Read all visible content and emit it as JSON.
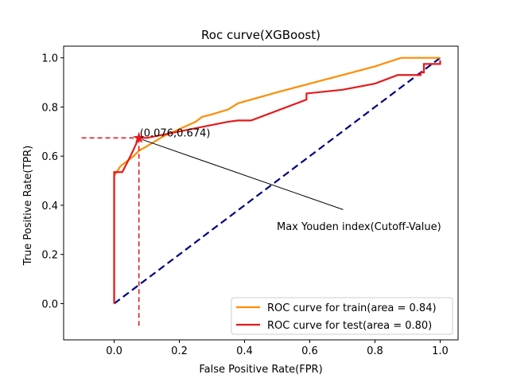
{
  "chart_data": {
    "type": "line",
    "title": "Roc curve(XGBoost)",
    "xlabel": "False Positive Rate(FPR)",
    "ylabel": "True Positive Rate(TPR)",
    "xlim": [
      -0.155,
      1.055
    ],
    "ylim": [
      -0.1475,
      1.0475
    ],
    "x_ticks": [
      "0.0",
      "0.2",
      "0.4",
      "0.6",
      "0.8",
      "1.0"
    ],
    "x_tick_values": [
      0,
      0.2,
      0.4,
      0.6,
      0.8,
      1.0
    ],
    "y_ticks": [
      "0.0",
      "0.2",
      "0.4",
      "0.6",
      "0.8",
      "1.0"
    ],
    "y_tick_values": [
      0,
      0.2,
      0.4,
      0.6,
      0.8,
      1.0
    ],
    "grid": false,
    "legend_position": "lower-right",
    "series": [
      {
        "name": "ROC curve for train(area = 0.84)",
        "color": "#ff8c00",
        "points": [
          [
            0,
            0
          ],
          [
            0,
            0.52
          ],
          [
            0.01,
            0.54
          ],
          [
            0.02,
            0.56
          ],
          [
            0.04,
            0.58
          ],
          [
            0.06,
            0.6
          ],
          [
            0.076,
            0.622
          ],
          [
            0.1,
            0.64
          ],
          [
            0.15,
            0.68
          ],
          [
            0.2,
            0.71
          ],
          [
            0.25,
            0.74
          ],
          [
            0.27,
            0.76
          ],
          [
            0.3,
            0.77
          ],
          [
            0.35,
            0.79
          ],
          [
            0.38,
            0.815
          ],
          [
            0.42,
            0.83
          ],
          [
            0.5,
            0.86
          ],
          [
            0.6,
            0.895
          ],
          [
            0.7,
            0.93
          ],
          [
            0.8,
            0.965
          ],
          [
            0.88,
            1.0
          ],
          [
            1.0,
            1.0
          ]
        ]
      },
      {
        "name": "ROC curve for test(area = 0.80)",
        "color": "#e31a1c",
        "points": [
          [
            0,
            0
          ],
          [
            0,
            0.535
          ],
          [
            0.025,
            0.535
          ],
          [
            0.05,
            0.6
          ],
          [
            0.076,
            0.674
          ],
          [
            0.1,
            0.674
          ],
          [
            0.35,
            0.74
          ],
          [
            0.38,
            0.745
          ],
          [
            0.42,
            0.745
          ],
          [
            0.59,
            0.83
          ],
          [
            0.59,
            0.855
          ],
          [
            0.7,
            0.87
          ],
          [
            0.8,
            0.895
          ],
          [
            0.87,
            0.93
          ],
          [
            0.94,
            0.93
          ],
          [
            0.94,
            0.94
          ],
          [
            0.95,
            0.94
          ],
          [
            0.95,
            0.975
          ],
          [
            1.0,
            0.975
          ],
          [
            1.0,
            0.99
          ]
        ]
      },
      {
        "name": "",
        "color": "#000080",
        "points": [
          [
            0,
            0
          ],
          [
            1,
            1
          ]
        ]
      }
    ],
    "cutoff_point": {
      "x": 0.076,
      "y": 0.674,
      "color": "#e31a1c"
    },
    "cutoff_lines": {
      "horizontal_from_x": -0.1,
      "vertical_to_y": -0.1,
      "color": "#e31a1c"
    },
    "annotations": [
      {
        "text": "(0.076,0.674)",
        "x": 0.076,
        "y": 0.674
      },
      {
        "text": "Max Youden index(Cutoff-Value)",
        "arrow_from": [
          0.5,
          0.35
        ],
        "arrow_to": [
          0.076,
          0.674
        ]
      }
    ]
  }
}
